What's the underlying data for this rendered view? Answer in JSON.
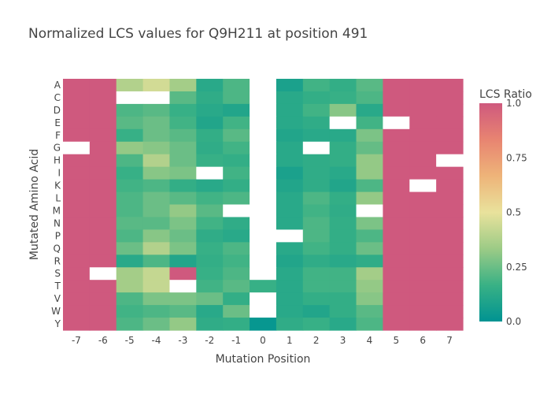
{
  "chart_data": {
    "type": "heatmap",
    "title": "Normalized LCS values for Q9H211 at position 491",
    "xlabel": "Mutation Position",
    "ylabel": "Mutated Amino Acid",
    "x": [
      "-7",
      "-6",
      "-5",
      "-4",
      "-3",
      "-2",
      "-1",
      "0",
      "1",
      "2",
      "3",
      "4",
      "5",
      "6",
      "7"
    ],
    "y": [
      "A",
      "C",
      "D",
      "E",
      "F",
      "G",
      "H",
      "I",
      "K",
      "L",
      "M",
      "N",
      "P",
      "Q",
      "R",
      "S",
      "T",
      "V",
      "W",
      "Y"
    ],
    "z": [
      [
        1.0,
        1.0,
        0.38,
        0.45,
        0.35,
        0.12,
        0.2,
        null,
        0.08,
        0.18,
        0.15,
        0.22,
        1.0,
        1.0,
        1.0
      ],
      [
        1.0,
        1.0,
        null,
        null,
        0.22,
        0.14,
        0.2,
        null,
        0.12,
        0.15,
        0.16,
        0.2,
        1.0,
        1.0,
        1.0
      ],
      [
        1.0,
        1.0,
        0.2,
        0.22,
        0.16,
        0.12,
        0.1,
        null,
        0.12,
        0.18,
        0.3,
        0.12,
        1.0,
        1.0,
        1.0
      ],
      [
        1.0,
        1.0,
        0.22,
        0.25,
        0.18,
        0.1,
        0.18,
        null,
        0.12,
        0.14,
        null,
        0.18,
        null,
        1.0,
        1.0
      ],
      [
        1.0,
        1.0,
        0.16,
        0.25,
        0.22,
        0.15,
        0.22,
        null,
        0.1,
        0.12,
        0.12,
        0.28,
        1.0,
        1.0,
        1.0
      ],
      [
        null,
        1.0,
        0.32,
        0.3,
        0.25,
        0.14,
        0.18,
        null,
        0.12,
        null,
        0.15,
        0.24,
        1.0,
        1.0,
        1.0
      ],
      [
        1.0,
        1.0,
        0.2,
        0.38,
        0.25,
        0.16,
        0.15,
        null,
        0.12,
        0.14,
        0.15,
        0.32,
        1.0,
        1.0,
        null
      ],
      [
        1.0,
        1.0,
        0.16,
        0.3,
        0.28,
        null,
        0.18,
        null,
        0.08,
        0.14,
        0.12,
        0.32,
        1.0,
        1.0,
        1.0
      ],
      [
        1.0,
        1.0,
        0.18,
        0.2,
        0.15,
        0.12,
        0.15,
        null,
        0.1,
        0.14,
        0.1,
        0.2,
        1.0,
        null,
        1.0
      ],
      [
        1.0,
        1.0,
        0.2,
        0.25,
        0.22,
        0.18,
        0.2,
        null,
        0.12,
        0.2,
        0.15,
        0.32,
        1.0,
        1.0,
        1.0
      ],
      [
        1.0,
        1.0,
        0.2,
        0.25,
        0.32,
        0.22,
        null,
        null,
        0.12,
        0.18,
        0.14,
        null,
        1.0,
        1.0,
        1.0
      ],
      [
        1.0,
        1.0,
        0.22,
        0.22,
        0.28,
        0.18,
        0.14,
        null,
        0.12,
        0.2,
        0.15,
        0.28,
        1.0,
        1.0,
        1.0
      ],
      [
        1.0,
        1.0,
        0.2,
        0.3,
        0.25,
        0.14,
        0.12,
        null,
        null,
        0.2,
        0.15,
        0.2,
        1.0,
        1.0,
        1.0
      ],
      [
        1.0,
        1.0,
        0.25,
        0.38,
        0.28,
        0.16,
        0.2,
        null,
        0.12,
        0.18,
        0.15,
        0.25,
        1.0,
        1.0,
        1.0
      ],
      [
        1.0,
        1.0,
        0.12,
        0.2,
        0.1,
        0.15,
        0.18,
        null,
        0.1,
        0.14,
        0.12,
        0.14,
        1.0,
        1.0,
        1.0
      ],
      [
        1.0,
        null,
        0.35,
        0.42,
        1.0,
        0.16,
        0.2,
        null,
        0.12,
        0.18,
        0.18,
        0.35,
        1.0,
        1.0,
        1.0
      ],
      [
        1.0,
        1.0,
        0.35,
        0.42,
        null,
        0.18,
        0.22,
        0.16,
        0.12,
        0.18,
        0.18,
        0.32,
        1.0,
        1.0,
        1.0
      ],
      [
        1.0,
        1.0,
        0.2,
        0.28,
        0.28,
        0.25,
        0.15,
        null,
        0.12,
        0.15,
        0.15,
        0.3,
        1.0,
        1.0,
        1.0
      ],
      [
        1.0,
        1.0,
        0.18,
        0.2,
        0.22,
        0.12,
        0.25,
        null,
        0.12,
        0.1,
        0.15,
        0.22,
        1.0,
        1.0,
        1.0
      ],
      [
        1.0,
        1.0,
        0.2,
        0.25,
        0.32,
        0.14,
        0.15,
        0.02,
        0.14,
        0.16,
        0.12,
        0.2,
        1.0,
        1.0,
        1.0
      ]
    ],
    "colorbar": {
      "title": "LCS Ratio",
      "range": [
        0,
        1
      ],
      "ticks": [
        "0.0",
        "0.25",
        "0.5",
        "0.75",
        "1.0"
      ],
      "tick_values": [
        0,
        0.25,
        0.5,
        0.75,
        1.0
      ]
    },
    "colorscale": [
      "#009392",
      "#39b185",
      "#9ccb86",
      "#e9e29c",
      "#eeb479",
      "#e88471",
      "#cf597e"
    ],
    "missing_color": "#ffffff"
  }
}
